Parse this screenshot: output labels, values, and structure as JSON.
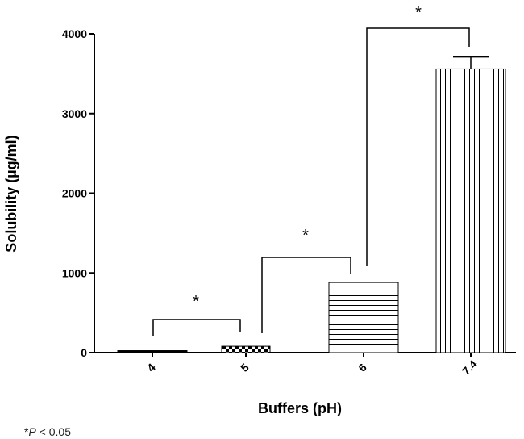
{
  "chart_data": {
    "type": "bar",
    "categories": [
      "4",
      "5",
      "6",
      "7.4"
    ],
    "values": [
      25,
      80,
      880,
      3560
    ],
    "errors": [
      0,
      0,
      0,
      150
    ],
    "patterns": [
      "solid",
      "checker",
      "horizontal-lines",
      "vertical-lines"
    ],
    "xlabel": "Buffers (pH)",
    "ylabel": "Solubility (µg/ml)",
    "ylim": [
      0,
      4000
    ],
    "yticks": [
      0,
      1000,
      2000,
      3000,
      4000
    ],
    "grid": false,
    "legend": "none",
    "significance": [
      {
        "from": "4",
        "to": "5",
        "label": "*"
      },
      {
        "from": "5",
        "to": "6",
        "label": "*"
      },
      {
        "from": "6",
        "to": "7.4",
        "label": "*"
      }
    ]
  },
  "footnote": {
    "star": "*",
    "p": "P",
    "rest": " < 0.05"
  }
}
